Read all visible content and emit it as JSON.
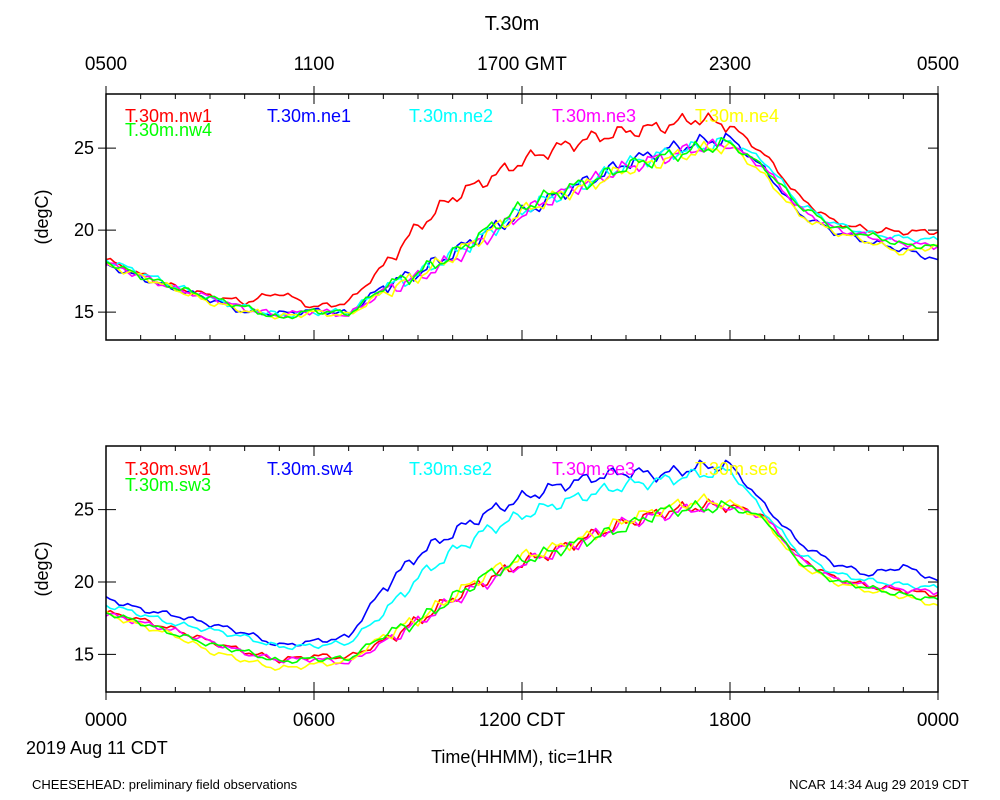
{
  "page": {
    "title": "T.30m",
    "gmt_ticks": [
      "0500",
      "1100",
      "1700 GMT",
      "2300",
      "0500"
    ],
    "cdt_ticks": [
      "0000",
      "0600",
      "1200 CDT",
      "1800",
      "0000"
    ],
    "xlabel": "Time(HHMM), tic=1HR",
    "date_label": "2019 Aug 11 CDT",
    "footer_left": "CHEESEHEAD: preliminary field observations",
    "footer_right": "NCAR 14:34 Aug 29 2019 CDT"
  },
  "chart_data": [
    {
      "type": "line",
      "title": "T.30m",
      "ylabel": "(degC)",
      "xlabel": "Time(HHMM), tic=1HR",
      "x_unit": "hours since 0000 CDT",
      "xlim": [
        0,
        24
      ],
      "ylim": [
        13.3,
        28.3
      ],
      "yticks": [
        15,
        20,
        25
      ],
      "x": [
        0,
        1,
        2,
        3,
        4,
        5,
        6,
        7,
        8,
        9,
        10,
        11,
        12,
        13,
        14,
        15,
        16,
        17,
        18,
        19,
        20,
        21,
        22,
        23,
        24
      ],
      "series": [
        {
          "name": "T.30m.nw1",
          "color": "#ff0000",
          "values": [
            18.2,
            17.3,
            16.5,
            16.0,
            15.6,
            16.2,
            15.3,
            15.6,
            17.8,
            20.2,
            22.0,
            23.1,
            24.2,
            25.0,
            25.6,
            26.0,
            26.3,
            26.8,
            26.4,
            24.6,
            22.0,
            20.5,
            20.0,
            19.9,
            19.9
          ]
        },
        {
          "name": "T.30m.ne1",
          "color": "#0000ff",
          "values": [
            17.9,
            17.1,
            16.4,
            15.8,
            15.0,
            14.9,
            15.1,
            14.9,
            16.6,
            17.4,
            18.6,
            19.9,
            21.0,
            22.1,
            23.1,
            24.1,
            24.8,
            25.3,
            25.6,
            23.7,
            21.0,
            19.9,
            19.3,
            18.8,
            18.2
          ]
        },
        {
          "name": "T.30m.ne2",
          "color": "#00ffff",
          "values": [
            18.2,
            17.4,
            16.6,
            15.8,
            15.3,
            14.8,
            15.0,
            15.0,
            16.4,
            17.3,
            18.5,
            19.8,
            21.2,
            22.1,
            23.0,
            24.0,
            24.6,
            25.0,
            25.4,
            24.2,
            21.6,
            20.4,
            19.8,
            19.5,
            19.4
          ]
        },
        {
          "name": "T.30m.ne3",
          "color": "#ff00ff",
          "values": [
            18.0,
            17.2,
            16.4,
            15.9,
            15.2,
            14.8,
            15.1,
            14.8,
            16.3,
            17.1,
            18.2,
            19.6,
            21.0,
            22.1,
            23.0,
            23.8,
            24.4,
            25.0,
            25.2,
            23.8,
            21.3,
            20.1,
            19.6,
            19.2,
            19.0
          ]
        },
        {
          "name": "T.30m.ne4",
          "color": "#ffff00",
          "values": [
            17.9,
            17.2,
            16.4,
            15.6,
            15.1,
            14.7,
            15.0,
            14.8,
            16.2,
            17.2,
            18.4,
            19.8,
            21.1,
            22.1,
            22.8,
            23.7,
            24.2,
            24.8,
            25.2,
            23.3,
            20.9,
            19.9,
            19.3,
            18.6,
            19.1
          ]
        },
        {
          "name": "T.30m.nw4",
          "color": "#00ff00",
          "values": [
            18.1,
            17.2,
            16.5,
            15.9,
            15.3,
            14.6,
            15.1,
            14.9,
            16.5,
            17.4,
            18.5,
            20.0,
            21.4,
            22.3,
            23.0,
            23.9,
            24.4,
            24.9,
            25.3,
            23.8,
            21.5,
            20.2,
            19.7,
            19.1,
            19.0
          ]
        }
      ]
    },
    {
      "type": "line",
      "ylabel": "(degC)",
      "x_unit": "hours since 0000 CDT",
      "xlim": [
        0,
        24
      ],
      "ylim": [
        12.4,
        29.4
      ],
      "yticks": [
        15,
        20,
        25
      ],
      "x": [
        0,
        1,
        2,
        3,
        4,
        5,
        6,
        7,
        8,
        9,
        10,
        11,
        12,
        13,
        14,
        15,
        16,
        17,
        18,
        19,
        20,
        21,
        22,
        23,
        24
      ],
      "series": [
        {
          "name": "T.30m.sw1",
          "color": "#ff0000",
          "values": [
            17.9,
            17.4,
            16.7,
            15.9,
            15.2,
            14.6,
            14.9,
            14.8,
            15.9,
            17.3,
            18.9,
            20.2,
            21.3,
            22.2,
            23.2,
            24.1,
            24.8,
            25.2,
            25.3,
            24.6,
            21.7,
            20.3,
            19.7,
            19.4,
            19.1
          ]
        },
        {
          "name": "T.30m.sw4",
          "color": "#0000ff",
          "values": [
            18.9,
            18.1,
            17.7,
            17.1,
            16.5,
            15.6,
            15.9,
            16.2,
            19.6,
            21.9,
            23.4,
            24.8,
            25.8,
            26.6,
            27.2,
            27.6,
            27.4,
            27.9,
            28.1,
            25.3,
            22.7,
            21.3,
            20.5,
            21.1,
            20.1
          ]
        },
        {
          "name": "T.30m.se2",
          "color": "#00ffff",
          "values": [
            18.4,
            17.8,
            17.1,
            16.7,
            16.2,
            15.5,
            15.6,
            15.8,
            17.8,
            20.3,
            22.1,
            23.6,
            24.6,
            25.4,
            26.1,
            26.7,
            27.0,
            27.4,
            27.7,
            24.8,
            22.0,
            20.6,
            20.1,
            19.8,
            19.6
          ]
        },
        {
          "name": "T.30m.se3",
          "color": "#ff00ff",
          "values": [
            17.8,
            17.2,
            16.6,
            15.9,
            15.1,
            14.6,
            14.7,
            14.4,
            15.8,
            17.2,
            18.7,
            20.0,
            21.3,
            22.1,
            23.1,
            24.1,
            24.6,
            25.1,
            25.2,
            24.5,
            21.6,
            20.2,
            19.7,
            19.5,
            19.3
          ]
        },
        {
          "name": "T.30m.se6",
          "color": "#ffff00",
          "values": [
            17.8,
            17.0,
            16.3,
            15.2,
            14.6,
            14.0,
            14.3,
            14.5,
            16.3,
            17.4,
            19.0,
            20.6,
            21.7,
            22.4,
            23.2,
            24.3,
            25.0,
            25.6,
            25.5,
            24.3,
            21.2,
            20.0,
            19.4,
            19.0,
            18.4
          ]
        },
        {
          "name": "T.30m.sw3",
          "color": "#00ff00",
          "values": [
            17.9,
            17.2,
            16.4,
            15.7,
            15.2,
            14.5,
            14.7,
            14.7,
            16.3,
            17.3,
            18.9,
            20.5,
            21.5,
            22.2,
            23.0,
            23.8,
            24.9,
            25.1,
            25.2,
            24.4,
            21.4,
            20.1,
            19.6,
            19.1,
            18.8
          ]
        }
      ]
    }
  ]
}
